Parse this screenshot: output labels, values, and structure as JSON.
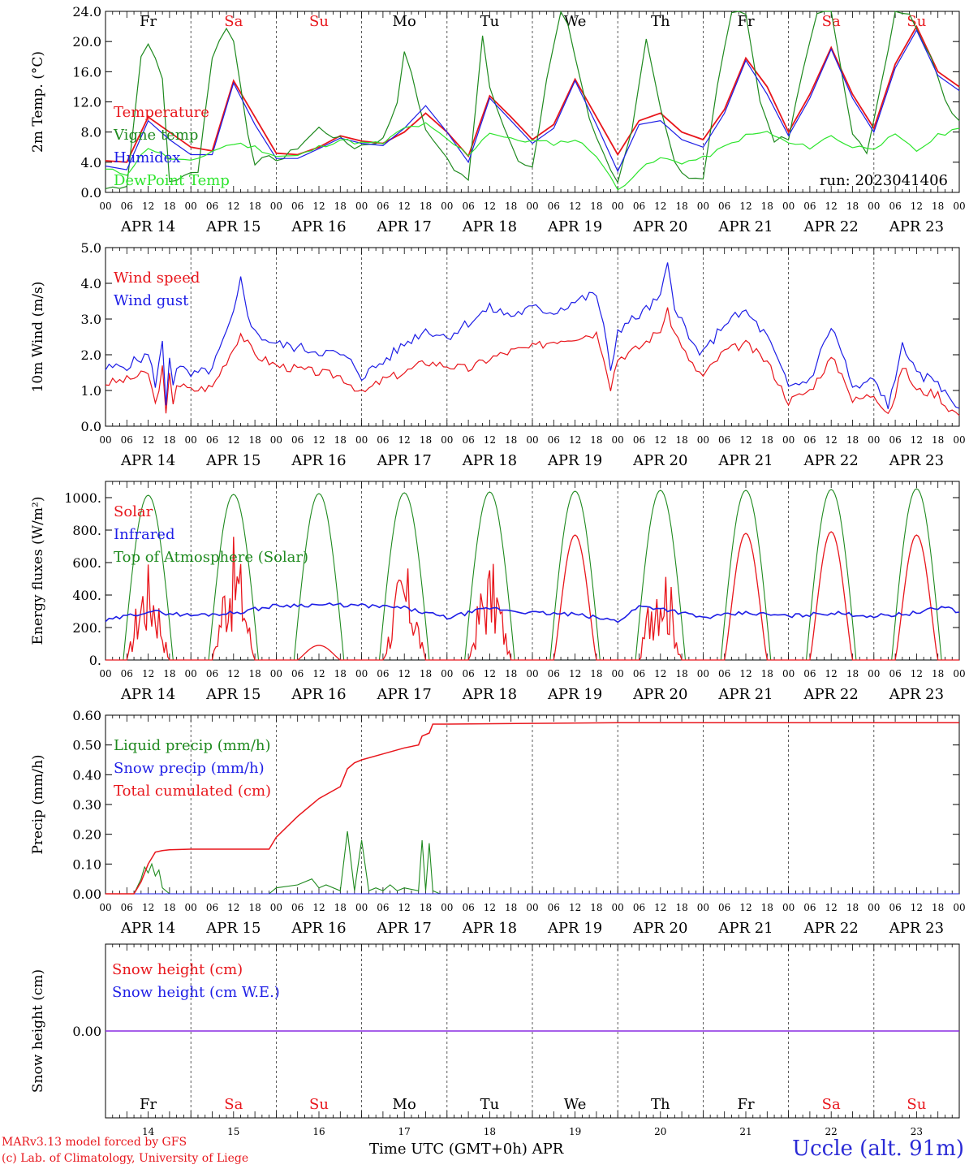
{
  "run_label": "run: 2023041406",
  "footer": {
    "model": "MARv3.13 model forced by GFS",
    "lab": "(c) Lab. of Climatology, University of Liege",
    "xlabel": "Time UTC (GMT+0h) APR",
    "station": "Uccle (alt. 91m)"
  },
  "colors": {
    "red": "#e8161c",
    "blue": "#1e1ee6",
    "green": "#1f8a1f",
    "light_green": "#2ee52e",
    "purple": "#8a2be2"
  },
  "x_axis": {
    "hour_ticks": [
      "00",
      "06",
      "12",
      "18"
    ],
    "day_labels": [
      "APR 14",
      "APR 15",
      "APR 16",
      "APR 17",
      "APR 18",
      "APR 19",
      "APR 20",
      "APR 21",
      "APR 22",
      "APR 23"
    ],
    "weekdays": [
      "Fr",
      "Sa",
      "Su",
      "Mo",
      "Tu",
      "We",
      "Th",
      "Fr",
      "Sa",
      "Su"
    ],
    "weekend": [
      false,
      true,
      true,
      false,
      false,
      false,
      false,
      false,
      true,
      true
    ],
    "day_numbers": [
      "14",
      "15",
      "16",
      "17",
      "18",
      "19",
      "20",
      "21",
      "22",
      "23"
    ]
  },
  "chart_data": [
    {
      "type": "line",
      "ylabel": "2m Temp. (°C)",
      "ylim": [
        0,
        24
      ],
      "yticks": [
        "0.0",
        "4.0",
        "8.0",
        "12.0",
        "16.0",
        "20.0",
        "24.0"
      ],
      "x_units": "hours since APR 14 00 UTC",
      "series": [
        {
          "name": "Temperature",
          "color": "red",
          "x": [
            0,
            6,
            12,
            18,
            24,
            30,
            36,
            42,
            48,
            54,
            60,
            66,
            72,
            78,
            84,
            90,
            96,
            102,
            108,
            114,
            120,
            126,
            132,
            138,
            144,
            150,
            156,
            162,
            168,
            174,
            180,
            186,
            192,
            198,
            204,
            210,
            216,
            222,
            228,
            234,
            240
          ],
          "values": [
            4.2,
            4.0,
            10.0,
            8.0,
            6.0,
            5.5,
            14.8,
            10.0,
            5.2,
            5.0,
            6.0,
            7.5,
            6.8,
            6.5,
            8.0,
            10.5,
            8.0,
            4.8,
            12.8,
            10.0,
            7.0,
            9.0,
            15.0,
            10.0,
            5.0,
            9.5,
            10.5,
            8.0,
            7.0,
            11.0,
            17.8,
            14.0,
            8.0,
            13.0,
            19.2,
            13.0,
            8.5,
            17.0,
            22.0,
            16.0,
            14.0
          ]
        },
        {
          "name": "Vigne temp",
          "color": "green",
          "x": [
            0,
            6,
            10,
            12,
            16,
            18,
            22,
            26,
            30,
            34,
            36,
            40,
            42,
            46,
            50,
            54,
            60,
            66,
            70,
            74,
            78,
            82,
            84,
            88,
            90,
            94,
            98,
            102,
            106,
            108,
            112,
            116,
            120,
            124,
            128,
            130,
            132,
            136,
            140,
            144,
            148,
            152,
            156,
            160,
            164,
            168,
            172,
            176,
            180,
            184,
            188,
            192,
            196,
            200,
            204,
            210,
            214,
            218,
            222,
            226,
            232,
            236,
            240
          ],
          "values": [
            0.5,
            1.0,
            18.0,
            20.0,
            15.0,
            1.5,
            2.0,
            3.0,
            18.0,
            22.0,
            20.0,
            8.0,
            4.0,
            4.5,
            4.5,
            6.0,
            8.5,
            7.0,
            6.0,
            6.5,
            7.0,
            12.0,
            19.0,
            12.0,
            8.0,
            6.0,
            3.0,
            1.5,
            21.0,
            14.0,
            9.0,
            4.0,
            3.0,
            15.0,
            24.0,
            22.0,
            18.0,
            10.0,
            5.0,
            1.5,
            8.0,
            20.0,
            11.0,
            4.0,
            2.0,
            2.0,
            14.0,
            24.0,
            24.0,
            12.0,
            7.0,
            7.0,
            16.0,
            24.0,
            24.0,
            8.0,
            5.0,
            14.0,
            24.0,
            24.0,
            18.0,
            12.0,
            9.5
          ]
        },
        {
          "name": "Humidex",
          "color": "blue",
          "x": [
            0,
            6,
            12,
            18,
            24,
            30,
            36,
            42,
            48,
            54,
            60,
            66,
            72,
            78,
            84,
            90,
            96,
            102,
            108,
            114,
            120,
            126,
            132,
            138,
            144,
            150,
            156,
            162,
            168,
            174,
            180,
            186,
            192,
            198,
            204,
            210,
            216,
            222,
            228,
            234,
            240
          ],
          "values": [
            3.5,
            3.0,
            9.5,
            7.0,
            5.0,
            5.0,
            14.5,
            9.0,
            4.5,
            4.5,
            5.8,
            7.2,
            6.5,
            6.2,
            8.5,
            11.5,
            8.0,
            4.0,
            12.5,
            9.5,
            6.5,
            8.5,
            14.8,
            9.0,
            2.8,
            9.0,
            9.5,
            7.0,
            6.0,
            10.5,
            17.5,
            13.0,
            7.5,
            12.5,
            19.0,
            12.5,
            8.0,
            16.5,
            21.5,
            15.5,
            13.5
          ]
        },
        {
          "name": "DewPoint Temp",
          "color": "light_green",
          "x": [
            0,
            6,
            12,
            18,
            24,
            30,
            36,
            42,
            48,
            54,
            60,
            66,
            72,
            78,
            84,
            90,
            96,
            102,
            108,
            114,
            120,
            126,
            132,
            138,
            144,
            150,
            156,
            162,
            168,
            174,
            180,
            186,
            192,
            198,
            204,
            210,
            216,
            222,
            228,
            234,
            240
          ],
          "values": [
            3.0,
            2.5,
            6.0,
            4.5,
            4.0,
            5.5,
            6.5,
            6.0,
            4.8,
            4.8,
            6.0,
            7.0,
            6.5,
            6.5,
            8.5,
            9.0,
            7.0,
            5.0,
            8.0,
            7.0,
            6.8,
            6.5,
            7.0,
            5.0,
            0.3,
            3.0,
            4.5,
            4.0,
            4.5,
            6.0,
            7.5,
            8.0,
            6.5,
            6.0,
            7.5,
            6.0,
            6.0,
            7.5,
            5.5,
            7.5,
            8.5
          ]
        }
      ]
    },
    {
      "type": "line",
      "ylabel": "10m Wind (m/s)",
      "ylim": [
        0,
        5
      ],
      "yticks": [
        "0.0",
        "1.0",
        "2.0",
        "3.0",
        "4.0",
        "5.0"
      ],
      "x_units": "hours since APR 14 00 UTC",
      "series": [
        {
          "name": "Wind speed",
          "color": "red",
          "x": [
            0,
            6,
            12,
            14,
            16,
            17,
            18,
            19,
            20,
            24,
            30,
            36,
            38,
            40,
            42,
            48,
            54,
            60,
            66,
            70,
            72,
            78,
            84,
            90,
            96,
            102,
            108,
            114,
            120,
            126,
            132,
            138,
            140,
            142,
            144,
            150,
            156,
            158,
            160,
            162,
            164,
            168,
            174,
            180,
            186,
            192,
            198,
            204,
            208,
            210,
            216,
            220,
            222,
            224,
            228,
            234,
            236,
            240
          ],
          "values": [
            1.2,
            1.3,
            1.5,
            0.6,
            1.6,
            0.3,
            1.4,
            0.7,
            1.2,
            1.0,
            1.1,
            2.2,
            2.6,
            2.3,
            2.0,
            1.7,
            1.6,
            1.5,
            1.4,
            1.1,
            0.9,
            1.3,
            1.5,
            1.8,
            1.7,
            1.6,
            1.9,
            2.1,
            2.2,
            2.4,
            2.5,
            2.6,
            2.0,
            1.1,
            1.9,
            2.2,
            2.7,
            3.2,
            2.6,
            2.3,
            1.8,
            1.4,
            2.1,
            2.3,
            1.8,
            0.7,
            1.0,
            1.9,
            1.3,
            0.7,
            0.9,
            0.4,
            0.8,
            1.7,
            1.0,
            0.9,
            0.6,
            0.3
          ]
        },
        {
          "name": "Wind gust",
          "color": "blue",
          "x": [
            0,
            6,
            12,
            14,
            16,
            17,
            18,
            19,
            20,
            24,
            30,
            36,
            38,
            40,
            42,
            48,
            54,
            60,
            66,
            70,
            72,
            78,
            84,
            90,
            96,
            102,
            108,
            114,
            120,
            126,
            132,
            138,
            140,
            142,
            144,
            150,
            156,
            158,
            160,
            162,
            164,
            168,
            174,
            180,
            186,
            192,
            198,
            204,
            208,
            210,
            216,
            220,
            222,
            224,
            228,
            234,
            236,
            240
          ],
          "values": [
            1.6,
            1.7,
            2.0,
            1.2,
            2.3,
            0.6,
            2.0,
            1.2,
            1.7,
            1.4,
            1.6,
            3.1,
            4.1,
            3.2,
            2.6,
            2.3,
            2.2,
            2.1,
            2.0,
            1.7,
            1.4,
            1.8,
            2.3,
            2.7,
            2.5,
            2.9,
            3.3,
            3.1,
            3.3,
            3.2,
            3.5,
            3.7,
            2.8,
            1.5,
            2.7,
            3.1,
            3.6,
            4.5,
            3.4,
            3.0,
            2.4,
            2.0,
            2.9,
            3.2,
            2.5,
            1.1,
            1.3,
            2.8,
            1.8,
            1.0,
            1.3,
            0.6,
            1.2,
            2.4,
            1.4,
            1.3,
            0.9,
            0.5
          ]
        }
      ]
    },
    {
      "type": "line",
      "ylabel": "Energy fluxes (W/m²)",
      "ylim": [
        0,
        1100
      ],
      "yticks": [
        "0.",
        "200.",
        "400.",
        "600.",
        "800.",
        "1000."
      ],
      "x_units": "hours since APR 14 00 UTC",
      "series": [
        {
          "name": "Solar",
          "color": "red",
          "peaks": [
            620,
            760,
            90,
            600,
            630,
            770,
            710,
            780,
            790,
            770
          ]
        },
        {
          "name": "Infrared",
          "color": "blue",
          "x": [
            0,
            12,
            24,
            36,
            48,
            60,
            72,
            84,
            96,
            108,
            120,
            132,
            144,
            150,
            156,
            168,
            180,
            192,
            204,
            216,
            228,
            236,
            240
          ],
          "values": [
            240,
            300,
            275,
            290,
            335,
            340,
            335,
            320,
            260,
            320,
            290,
            280,
            240,
            330,
            320,
            260,
            290,
            270,
            290,
            270,
            290,
            330,
            295
          ]
        },
        {
          "name": "Top of Atmosphere (Solar)",
          "color": "green",
          "peaks": [
            1015,
            1020,
            1025,
            1030,
            1035,
            1040,
            1045,
            1045,
            1050,
            1055
          ]
        }
      ]
    },
    {
      "type": "line",
      "ylabel": "Precip (mm/h)",
      "ylim": [
        0,
        0.6
      ],
      "yticks": [
        "0.00",
        "0.10",
        "0.20",
        "0.30",
        "0.40",
        "0.50",
        "0.60"
      ],
      "x_units": "hours since APR 14 00 UTC",
      "series": [
        {
          "name": "Liquid precip (mm/h)",
          "color": "green",
          "x": [
            0,
            8,
            10,
            11,
            12,
            13,
            14,
            15,
            16,
            18,
            36,
            46,
            48,
            54,
            58,
            60,
            62,
            66,
            68,
            70,
            72,
            74,
            76,
            78,
            80,
            82,
            84,
            88,
            89,
            90,
            91,
            92,
            94,
            96,
            240
          ],
          "values": [
            0,
            0,
            0.05,
            0.09,
            0.07,
            0.1,
            0.06,
            0.08,
            0.02,
            0,
            0,
            0,
            0.02,
            0.03,
            0.05,
            0.02,
            0.03,
            0.01,
            0.21,
            0.01,
            0.18,
            0.01,
            0.02,
            0.01,
            0.03,
            0.01,
            0.02,
            0.01,
            0.18,
            0.01,
            0.17,
            0.01,
            0,
            0,
            0
          ]
        },
        {
          "name": "Snow precip (mm/h)",
          "color": "blue",
          "x": [
            0,
            240
          ],
          "values": [
            0,
            0
          ]
        },
        {
          "name": "Total cumulated (cm)",
          "color": "red",
          "x": [
            0,
            8,
            10,
            12,
            14,
            16,
            18,
            24,
            36,
            46,
            48,
            54,
            60,
            66,
            68,
            70,
            72,
            78,
            84,
            88,
            89,
            91,
            92,
            96,
            144,
            240
          ],
          "values": [
            0,
            0,
            0.04,
            0.1,
            0.14,
            0.145,
            0.148,
            0.15,
            0.15,
            0.15,
            0.19,
            0.26,
            0.32,
            0.36,
            0.42,
            0.44,
            0.45,
            0.47,
            0.49,
            0.5,
            0.53,
            0.54,
            0.57,
            0.57,
            0.575,
            0.575
          ]
        }
      ]
    },
    {
      "type": "line",
      "ylabel": "Snow height (cm)",
      "yticks": [
        "0.00"
      ],
      "series": [
        {
          "name": "Snow height (cm)",
          "color": "red",
          "x": [
            0,
            240
          ],
          "values": [
            0,
            0
          ]
        },
        {
          "name": "Snow height (cm W.E.)",
          "color": "blue",
          "x": [
            0,
            240
          ],
          "values": [
            0,
            0
          ]
        }
      ]
    }
  ]
}
